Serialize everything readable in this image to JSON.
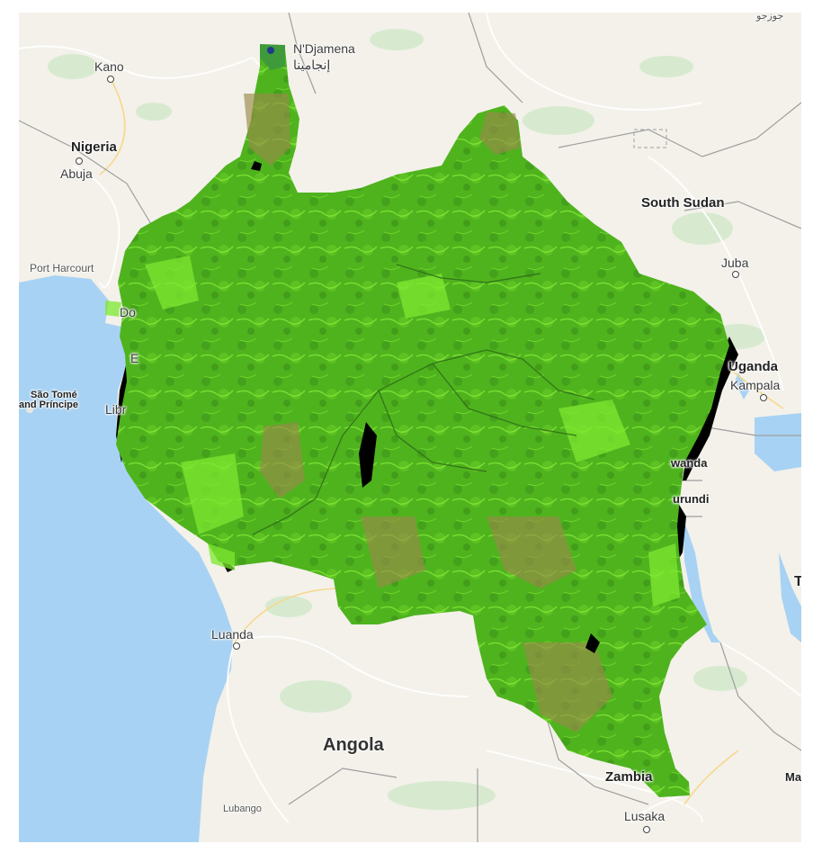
{
  "map": {
    "colors": {
      "land": "#f3f1ea",
      "water": "#a8d2f3",
      "park": "#d7ead0",
      "overlay_green": "#4fb31e",
      "overlay_bright": "#7ee830",
      "overlay_brown": "#9a8a4a",
      "overlay_black": "#000000"
    },
    "labels": {
      "ndjamena": "N'Djamena",
      "ndjamena_ar": "إنجامينا",
      "kano": "Kano",
      "nigeria": "Nigeria",
      "abuja": "Abuja",
      "port_harcourt": "Port Harcourt",
      "south_sudan": "South Sudan",
      "juba": "Juba",
      "uganda": "Uganda",
      "kampala": "Kampala",
      "sao_tome_1": "São Tomé",
      "sao_tome_2": "and Príncipe",
      "libreville_cut": "Libr",
      "douala_cut": "Do",
      "eq_cut": "E",
      "rwanda_cut": "wanda",
      "burundi_cut": "urundi",
      "luanda": "Luanda",
      "angola": "Angola",
      "zambia": "Zambia",
      "lubango": "Lubango",
      "lusaka": "Lusaka",
      "ma_cut": "Ma",
      "t_cut": "T",
      "top_right_cut": "جوزجو"
    }
  }
}
